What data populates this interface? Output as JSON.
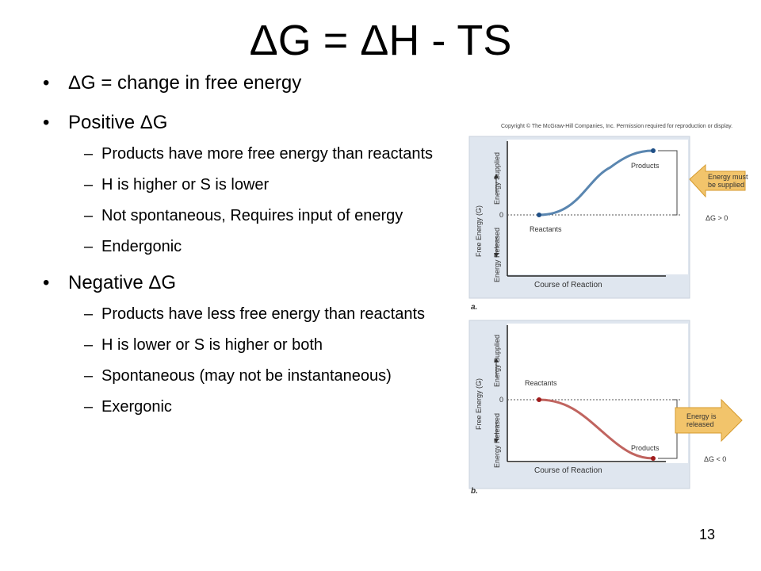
{
  "slide": {
    "title": "ΔG = ΔH - TS",
    "page_number": "13"
  },
  "bullets": [
    {
      "text": "ΔG = change in free energy",
      "subs": []
    },
    {
      "text": "Positive ΔG",
      "subs": [
        "Products have more free energy than reactants",
        "H is higher or S is lower",
        "Not spontaneous, Requires input of energy",
        "Endergonic"
      ]
    },
    {
      "text": "Negative ΔG",
      "subs": [
        "Products have less free energy than reactants",
        "H is lower or S is higher or both",
        "Spontaneous (may not be instantaneous)",
        "Exergonic"
      ]
    }
  ],
  "figure": {
    "copyright": "Copyright © The McGraw-Hill Companies, Inc. Permission required for reproduction or display.",
    "y_axis_label": "Free Energy (G)",
    "energy_supplied": "Energy Supplied",
    "energy_released": "Energy Released",
    "x_axis_label": "Course of Reaction",
    "zero": "0",
    "panel_a": {
      "letter": "a.",
      "start_label": "Reactants",
      "end_label": "Products",
      "arrow_text": [
        "Energy must",
        "be supplied"
      ],
      "delta": "ΔG > 0",
      "line_color": "#5a86b0",
      "arrow_color": "#f2c46b"
    },
    "panel_b": {
      "letter": "b.",
      "start_label": "Reactants",
      "end_label": "Products",
      "arrow_text": [
        "Energy is",
        "released"
      ],
      "delta": "ΔG < 0",
      "line_color": "#c0645f",
      "arrow_color": "#f2c46b"
    }
  }
}
